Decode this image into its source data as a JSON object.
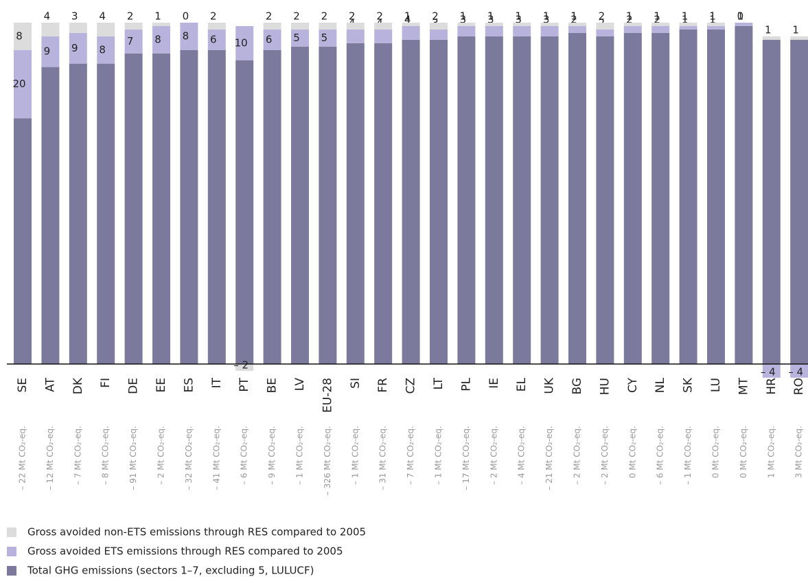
{
  "chart_data": {
    "type": "stacked-bar",
    "categories": [
      "SE",
      "AT",
      "DK",
      "FI",
      "DE",
      "EE",
      "ES",
      "IT",
      "PT",
      "BE",
      "LV",
      "EU-28",
      "SI",
      "FR",
      "CZ",
      "LT",
      "PL",
      "IE",
      "EL",
      "UK",
      "BG",
      "HU",
      "CY",
      "NL",
      "SK",
      "LU",
      "MT",
      "HR",
      "RO"
    ],
    "category_notes": [
      "– 22 Mt CO₂-eq.",
      "– 12 Mt CO₂-eq.",
      "– 7 Mt CO₂-eq.",
      "– 8 Mt CO₂-eq.",
      "– 91 Mt CO₂-eq.",
      "– 2 Mt CO₂-eq.",
      "– 32 Mt CO₂-eq.",
      "– 41 Mt CO₂-eq.",
      "– 6 Mt CO₂-eq.",
      "– 9 Mt CO₂-eq.",
      "– 1 Mt CO₂-eq.",
      "– 326 Mt CO₂-eq.",
      "– 1 Mt CO₂-eq.",
      "– 31 Mt CO₂-eq.",
      "– 7 Mt CO₂-eq.",
      "– 1 Mt CO₂-eq.",
      "– 17 Mt CO₂-eq.",
      "– 2 Mt CO₂-eq.",
      "– 4 Mt CO₂-eq.",
      "– 21 Mt CO₂-eq.",
      "– 2 Mt CO₂-eq.",
      "– 2 Mt CO₂-eq.",
      "0 Mt CO₂-eq.",
      "– 6 Mt CO₂-eq.",
      "– 1 Mt CO₂-eq.",
      "0 Mt CO₂-eq.",
      "0 Mt CO₂-eq.",
      "1 Mt CO₂-eq.",
      "3 Mt CO₂-eq."
    ],
    "ylim": [
      0,
      100
    ],
    "series": [
      {
        "name": "Gross avoided non-ETS emissions through RES compared to 2005",
        "color": "#dcdcdc",
        "values": [
          8,
          4,
          3,
          4,
          2,
          1,
          0,
          2,
          -2,
          2,
          2,
          2,
          2,
          2,
          1,
          2,
          1,
          1,
          1,
          1,
          1,
          2,
          1,
          1,
          1,
          1,
          0,
          1,
          1
        ],
        "value_labels": [
          "8",
          "4",
          "3",
          "4",
          "2",
          "1",
          "0",
          "2",
          "– 2",
          "2",
          "2",
          "2",
          "2",
          "2",
          "1",
          "2",
          "1",
          "1",
          "1",
          "1",
          "1",
          "2",
          "1",
          "1",
          "1",
          "1",
          "0",
          "1",
          "1"
        ]
      },
      {
        "name": "Gross avoided ETS emissions through RES compared to 2005",
        "color": "#b7b3dd",
        "values": [
          20,
          9,
          9,
          8,
          7,
          8,
          8,
          6,
          10,
          6,
          5,
          5,
          4,
          4,
          4,
          3,
          3,
          3,
          3,
          3,
          2,
          2,
          2,
          2,
          1,
          1,
          1,
          -4,
          -4
        ],
        "value_labels": [
          "20",
          "9",
          "9",
          "8",
          "7",
          "8",
          "8",
          "6",
          "10",
          "6",
          "5",
          "5",
          "4",
          "4",
          "4",
          "3",
          "3",
          "3",
          "3",
          "3",
          "2",
          "2",
          "2",
          "2",
          "1",
          "1",
          "1",
          "– 4",
          "– 4"
        ]
      },
      {
        "name": "Total GHG emissions (sectors 1–7, excluding 5, LULUCF)",
        "color": "#7b7a9c",
        "values": [
          72,
          87,
          88,
          88,
          91,
          91,
          92,
          92,
          89,
          92,
          93,
          93,
          94,
          94,
          95,
          95,
          96,
          96,
          96,
          96,
          97,
          96,
          97,
          97,
          98,
          98,
          99,
          95,
          95
        ]
      }
    ]
  }
}
